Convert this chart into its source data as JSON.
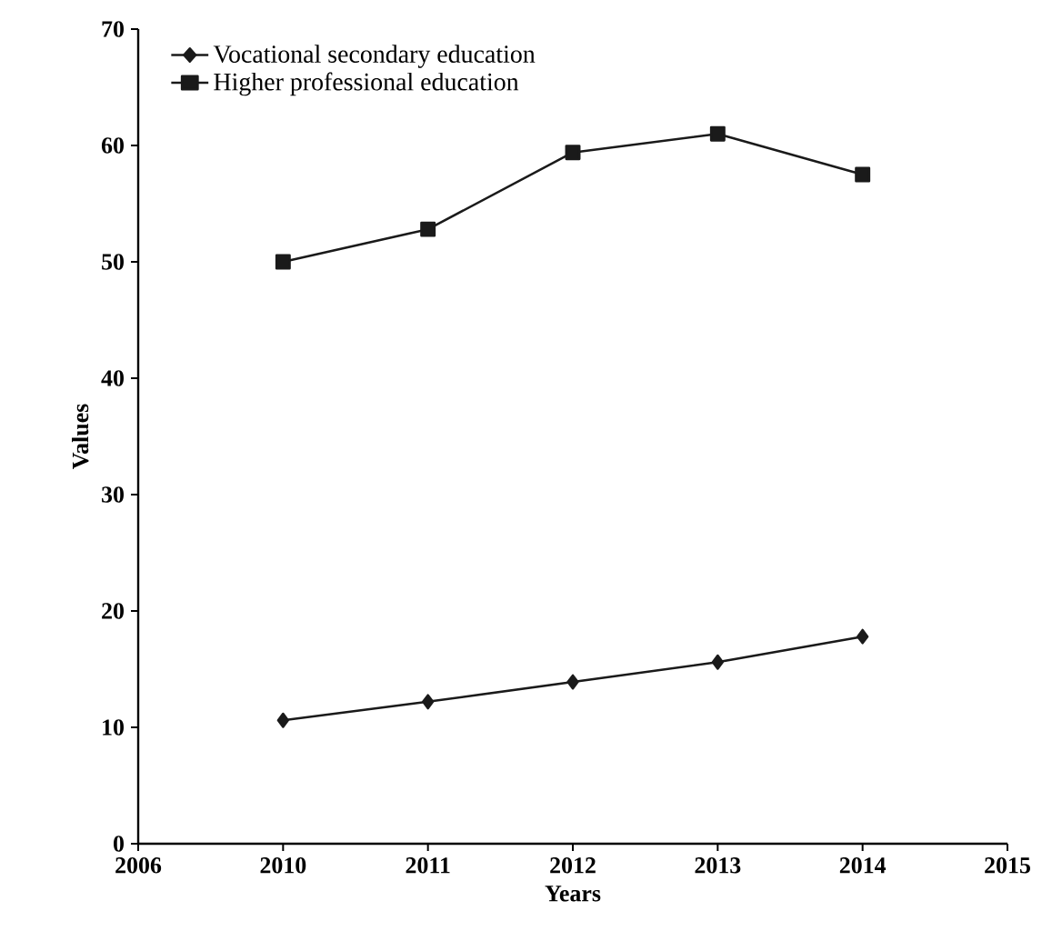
{
  "chart_data": {
    "type": "line",
    "xlabel": "Years",
    "ylabel": "Values",
    "categories": [
      "2006",
      "2010",
      "2011",
      "2012",
      "2013",
      "2014",
      "2015"
    ],
    "ylim": [
      0,
      70
    ],
    "yticks": [
      0,
      10,
      20,
      30,
      40,
      50,
      60,
      70
    ],
    "legend": "top left",
    "grid": false,
    "series": [
      {
        "name": "Vocational secondary education",
        "color": "#1a1a1a",
        "marker": "diamond",
        "values": [
          null,
          10.6,
          12.2,
          13.9,
          15.6,
          17.8,
          null
        ]
      },
      {
        "name": "Higher professional education",
        "color": "#1a1a1a",
        "marker": "square",
        "values": [
          null,
          50.0,
          52.8,
          59.4,
          61.0,
          57.5,
          null
        ]
      }
    ]
  }
}
